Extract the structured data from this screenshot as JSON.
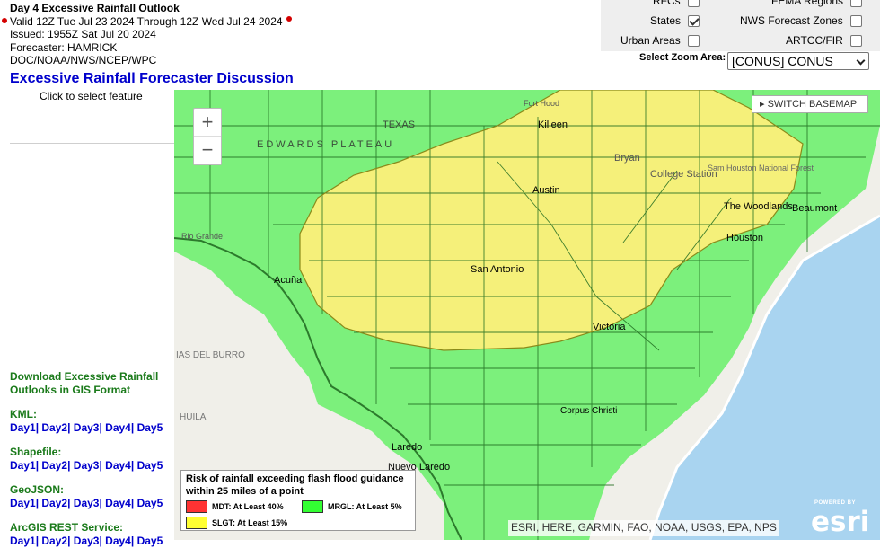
{
  "header": {
    "title": "Day 4 Excessive Rainfall Outlook",
    "valid": "Valid 12Z Tue Jul 23 2024 Through 12Z Wed Jul 24 2024",
    "issued": "Issued: 1955Z Sat Jul 20 2024",
    "forecaster": "Forecaster: HAMRICK",
    "office": "DOC/NOAA/NWS/NCEP/WPC"
  },
  "discussion_link": "Excessive Rainfall Forecaster Discussion",
  "click_prompt": "Click to select feature",
  "layers": {
    "rfcs": "RFCs",
    "fema": "FEMA Regions",
    "states": "States",
    "nws_zones": "NWS Forecast Zones",
    "urban": "Urban Areas",
    "artcc": "ARTCC/FIR",
    "states_checked": true
  },
  "zoom": {
    "label": "Select Zoom Area:",
    "selected": "[CONUS] CONUS"
  },
  "downloads": {
    "heading": "Download Excessive Rainfall Outlooks in GIS Format",
    "kml": "KML:",
    "shapefile": "Shapefile:",
    "geojson": "GeoJSON:",
    "arcgis": "ArcGIS REST Service:",
    "days": [
      "Day1",
      "Day2",
      "Day3",
      "Day4",
      "Day5"
    ]
  },
  "map": {
    "switch_basemap": "SWITCH BASEMAP",
    "zoom_in": "+",
    "zoom_out": "−",
    "attribution": "ESRI, HERE, GARMIN, FAO, NOAA, USGS, EPA, NPS",
    "esri_powered": "POWERED BY",
    "esri_name": "esri",
    "places": {
      "texas": "TEXAS",
      "edwards": "EDWARDS PLATEAU",
      "killeen": "Killeen",
      "fort_hood": "Fort Hood",
      "bryan": "Bryan",
      "college_station": "College Station",
      "sam_houston": "Sam Houston National Forest",
      "austin": "Austin",
      "woodlands": "The Woodlands",
      "beaumont": "Beaumont",
      "houston": "Houston",
      "san_antonio": "San Antonio",
      "acuna": "Acuña",
      "victoria": "Victoria",
      "del_burro": "IAS DEL BURRO",
      "huila": "HUILA",
      "laredo": "Laredo",
      "nuevo_laredo": "Nuevo Laredo",
      "corpus": "Corpus Christi",
      "rio_grande": "Rio Grande"
    }
  },
  "legend": {
    "title": "Risk of rainfall exceeding flash flood guidance within 25 miles of a point",
    "mdt": "MDT: At Least 40%",
    "mrgl": "MRGL: At Least 5%",
    "slgt": "SLGT: At Least 15%"
  },
  "colors": {
    "mdt": "#ff3333",
    "mrgl": "#33ff33",
    "slgt": "#ffff33",
    "map_green": "#7cf07c",
    "map_yellow": "#f5f07a",
    "county_lines": "#1f6b1f",
    "water": "#a9d4f0",
    "link_blue": "#0000cc",
    "heading_green": "#1a7a1a"
  }
}
